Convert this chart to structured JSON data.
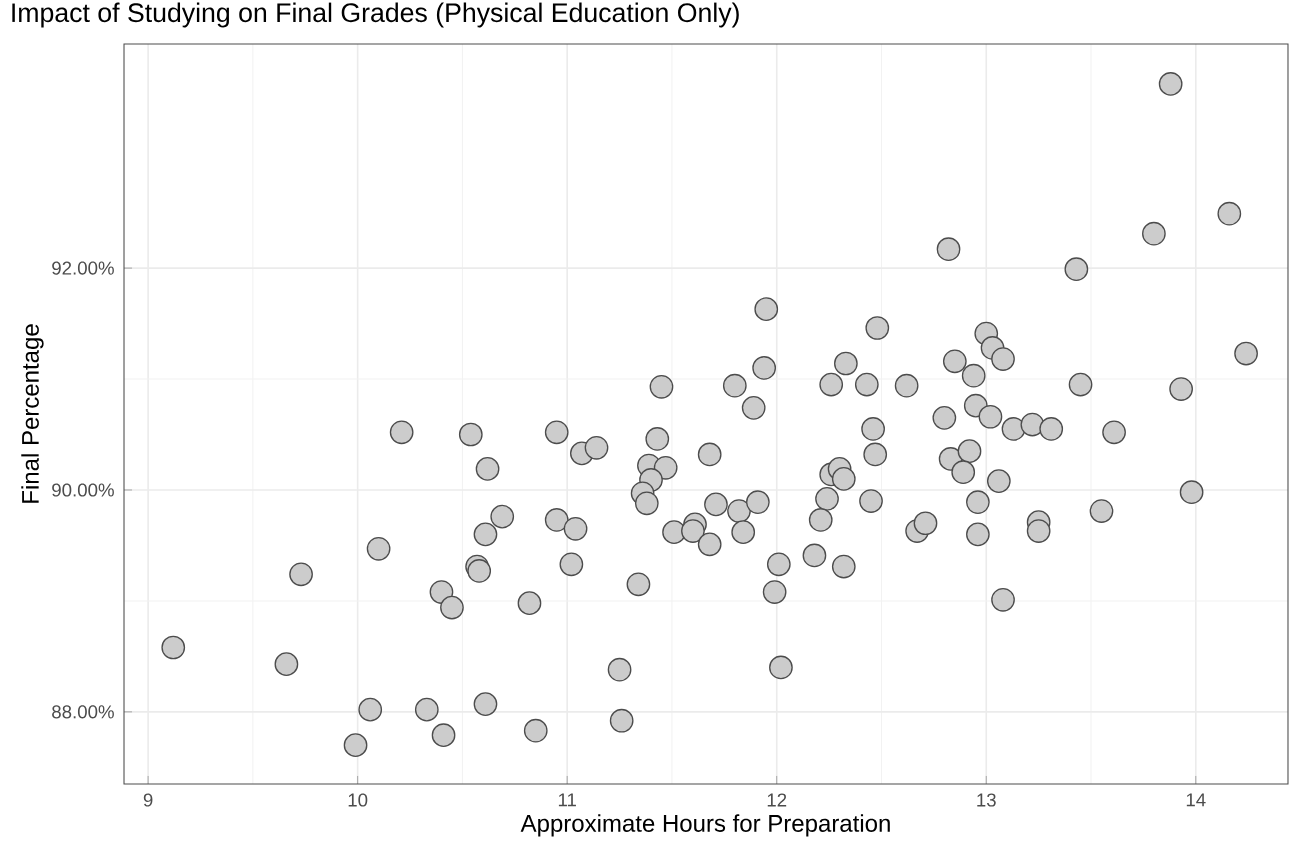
{
  "chart_data": {
    "type": "scatter",
    "title": "Impact of Studying on Final Grades (Physical Education Only)",
    "xlabel": "Approximate Hours for Preparation",
    "ylabel": "Final Percentage",
    "xlim": [
      8.885,
      14.44
    ],
    "ylim": [
      87.35,
      94.02
    ],
    "xticks": [
      9,
      10,
      11,
      12,
      13,
      14
    ],
    "yticks": [
      {
        "value": 88,
        "label": "88.00%"
      },
      {
        "value": 90,
        "label": "90.00%"
      },
      {
        "value": 92,
        "label": "92.00%"
      }
    ],
    "grid": true,
    "marker": "circle",
    "series": [
      {
        "color": "#cccccc",
        "x": [
          9.12,
          9.66,
          9.73,
          10.21,
          10.54,
          10.95,
          11.07,
          11.14,
          11.43,
          10.62,
          11.39,
          11.47,
          11.4,
          11.36,
          11.38,
          11.68,
          11.71,
          10.69,
          10.61,
          10.95,
          11.04,
          10.1,
          10.57,
          10.58,
          11.02,
          11.51,
          11.61,
          11.6,
          11.68,
          10.4,
          10.45,
          10.82,
          11.34,
          11.25,
          10.06,
          10.33,
          10.61,
          9.99,
          10.41,
          10.85,
          11.26,
          11.45,
          13.88,
          14.16,
          13.8,
          12.82,
          13.43,
          11.95,
          12.48,
          13.0,
          13.03,
          13.08,
          12.85,
          14.24,
          12.33,
          11.94,
          12.94,
          11.8,
          12.26,
          12.43,
          12.62,
          13.45,
          13.93,
          11.89,
          12.95,
          12.8,
          13.02,
          12.46,
          13.13,
          13.22,
          13.31,
          13.61,
          12.47,
          12.83,
          12.92,
          12.89,
          13.06,
          12.26,
          12.3,
          12.32,
          12.24,
          12.45,
          12.96,
          13.98,
          13.55,
          11.82,
          11.91,
          11.84,
          12.21,
          12.67,
          12.71,
          12.96,
          13.25,
          13.25,
          12.01,
          12.18,
          12.32,
          11.99,
          13.08,
          12.02
        ],
        "values": [
          88.58,
          88.43,
          89.24,
          90.52,
          90.5,
          90.52,
          90.33,
          90.38,
          90.46,
          90.19,
          90.22,
          90.2,
          90.09,
          89.97,
          89.88,
          90.32,
          89.87,
          89.76,
          89.6,
          89.73,
          89.65,
          89.47,
          89.31,
          89.27,
          89.33,
          89.62,
          89.69,
          89.63,
          89.51,
          89.08,
          88.94,
          88.98,
          89.15,
          88.38,
          88.02,
          88.02,
          88.07,
          87.7,
          87.79,
          87.83,
          87.92,
          90.93,
          93.66,
          92.49,
          92.31,
          92.17,
          91.99,
          91.63,
          91.46,
          91.41,
          91.28,
          91.18,
          91.16,
          91.23,
          91.14,
          91.1,
          91.03,
          90.94,
          90.95,
          90.95,
          90.94,
          90.95,
          90.91,
          90.74,
          90.76,
          90.65,
          90.66,
          90.55,
          90.55,
          90.59,
          90.55,
          90.52,
          90.32,
          90.28,
          90.35,
          90.16,
          90.08,
          90.14,
          90.19,
          90.1,
          89.92,
          89.9,
          89.89,
          89.98,
          89.81,
          89.81,
          89.89,
          89.62,
          89.73,
          89.63,
          89.7,
          89.6,
          89.71,
          89.63,
          89.33,
          89.41,
          89.31,
          89.08,
          89.01,
          88.4
        ]
      }
    ]
  }
}
